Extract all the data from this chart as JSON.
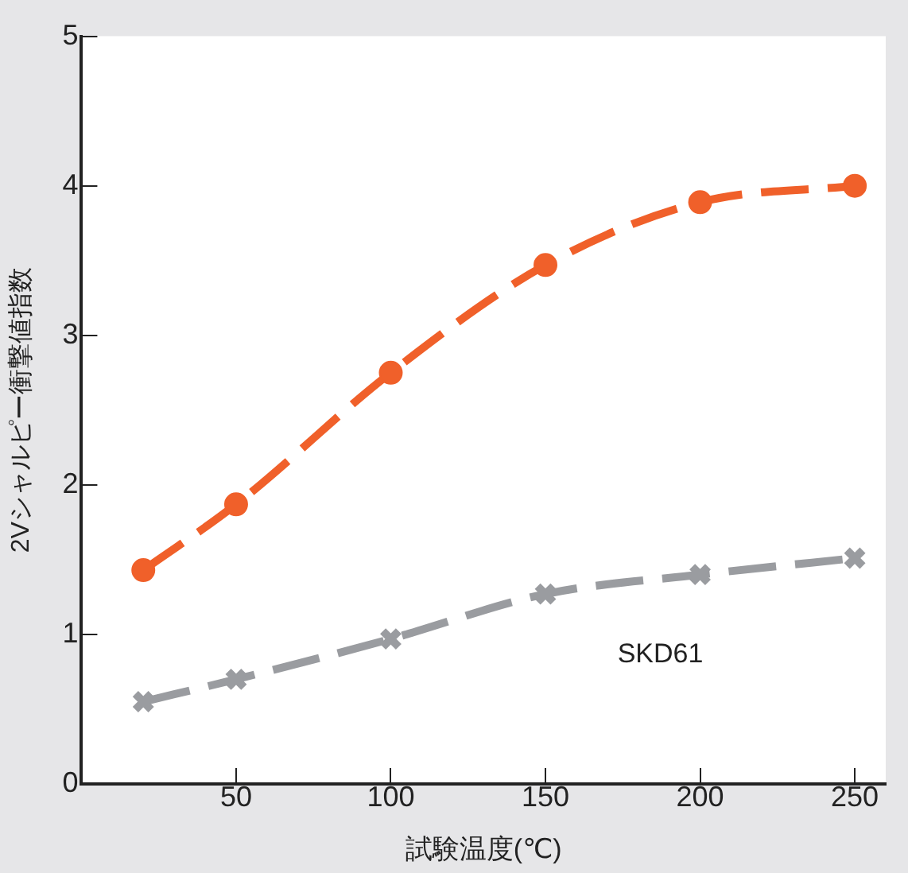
{
  "chart_data": {
    "type": "line",
    "xlabel": "試験温度(℃)",
    "ylabel": "2Vシャルピー衝撃値指数",
    "xlim": [
      0,
      260
    ],
    "xticks": [
      50,
      100,
      150,
      200,
      250
    ],
    "ylim": [
      0,
      5
    ],
    "yticks": [
      0,
      1,
      2,
      3,
      4,
      5
    ],
    "grid": false,
    "legend": false,
    "line_style": "dashed",
    "series": [
      {
        "color": "#f0602a",
        "marker": "circle",
        "x": [
          20,
          50,
          100,
          150,
          200,
          250
        ],
        "values": [
          1.43,
          1.87,
          2.75,
          3.47,
          3.89,
          4.0
        ]
      },
      {
        "name": "SKD61",
        "color": "#9a9ca0",
        "marker": "cross",
        "x": [
          20,
          50,
          100,
          150,
          200,
          250
        ],
        "values": [
          0.55,
          0.7,
          0.97,
          1.27,
          1.4,
          1.51
        ]
      }
    ]
  }
}
